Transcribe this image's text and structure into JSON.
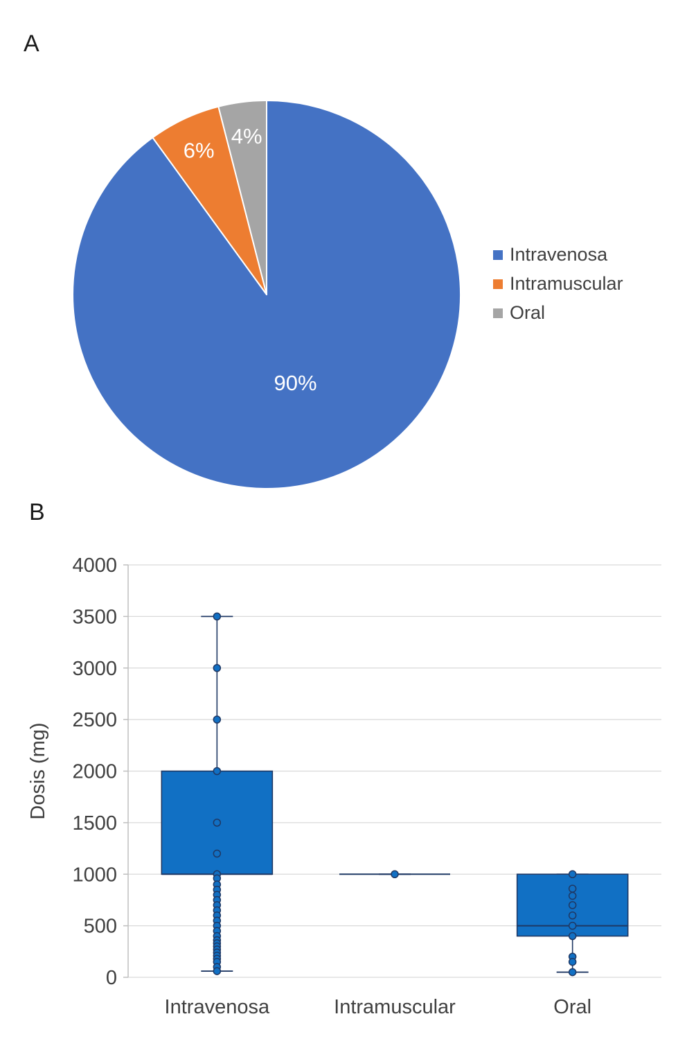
{
  "panels": {
    "a_label": "A",
    "b_label": "B"
  },
  "chart_data": [
    {
      "type": "pie",
      "labels": [
        "Intravenosa",
        "Intramuscular",
        "Oral"
      ],
      "values": [
        90,
        6,
        4
      ],
      "slice_labels": [
        "90%",
        "6%",
        "4%"
      ],
      "colors": [
        "#4472C4",
        "#ED7D31",
        "#A5A5A5"
      ],
      "label_color": "#FFFFFF",
      "legend_position": "right",
      "start_angle_deg": 0,
      "direction": "clockwise"
    },
    {
      "type": "boxplot",
      "ylabel": "Dosis (mg)",
      "ylim": [
        0,
        4000
      ],
      "yticks": [
        0,
        500,
        1000,
        1500,
        2000,
        2500,
        3000,
        3500,
        4000
      ],
      "grid": true,
      "categories": [
        "Intravenosa",
        "Intramuscular",
        "Oral"
      ],
      "box_fill": "#1170C4",
      "box_stroke": "#1F3864",
      "grid_color": "#D9D9D9",
      "axis_color": "#BFBFBF",
      "text_color": "#3F3F3F",
      "series": [
        {
          "category": "Intravenosa",
          "q1": 1000,
          "median": 1000,
          "q3": 2000,
          "whisker_low": 60,
          "whisker_high": 3500,
          "points": [
            3500,
            3000,
            2500,
            2000,
            1500,
            1200,
            1000,
            960,
            900,
            850,
            800,
            750,
            700,
            650,
            600,
            550,
            500,
            450,
            400,
            360,
            330,
            300,
            270,
            240,
            210,
            180,
            150,
            100,
            60
          ]
        },
        {
          "category": "Intramuscular",
          "q1": 1000,
          "median": 1000,
          "q3": 1000,
          "whisker_low": 1000,
          "whisker_high": 1000,
          "points": [
            1000
          ]
        },
        {
          "category": "Oral",
          "q1": 400,
          "median": 500,
          "q3": 1000,
          "whisker_low": 50,
          "whisker_high": 1000,
          "points": [
            1000,
            860,
            790,
            700,
            600,
            500,
            400,
            200,
            150,
            50
          ]
        }
      ]
    }
  ]
}
